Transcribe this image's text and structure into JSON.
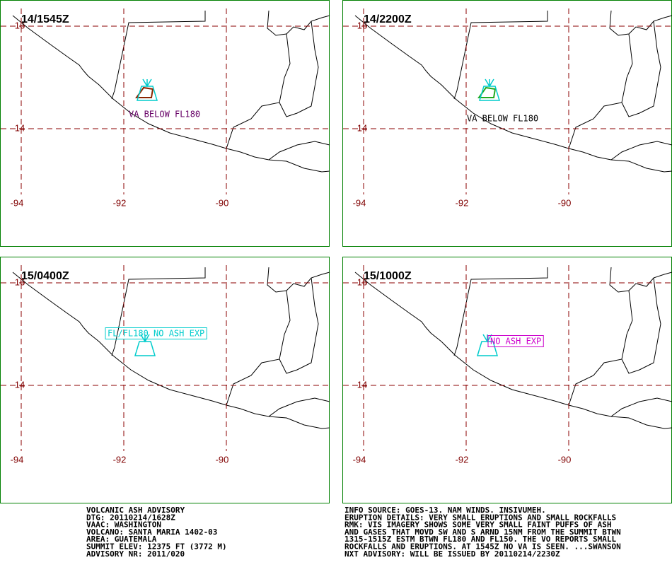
{
  "panels": [
    {
      "title": "14/1545Z",
      "lat_labels": [
        "16",
        "14"
      ],
      "lon_labels": [
        "-94",
        "-92",
        "-90"
      ],
      "annotation": {
        "text": "VA BELOW FL180",
        "color": "#660066",
        "boxed": false,
        "ash": "#8b2500"
      }
    },
    {
      "title": "14/2200Z",
      "lat_labels": [
        "16",
        "14"
      ],
      "lon_labels": [
        "-94",
        "-92",
        "-90"
      ],
      "annotation": {
        "text": "VA BELOW FL180",
        "color": "#000000",
        "boxed": false,
        "ash": "#22aa22"
      }
    },
    {
      "title": "15/0400Z",
      "lat_labels": [
        "16",
        "14"
      ],
      "lon_labels": [
        "-94",
        "-92",
        "-90"
      ],
      "annotation": {
        "text": "FL/FL180 NO ASH EXP",
        "color": "#00cccc",
        "boxed": true,
        "ash": null
      }
    },
    {
      "title": "15/1000Z",
      "lat_labels": [
        "16",
        "14"
      ],
      "lon_labels": [
        "-94",
        "-92",
        "-90"
      ],
      "annotation": {
        "text": "NO ASH EXP",
        "color": "#cc00cc",
        "boxed": true,
        "ash": null
      }
    }
  ],
  "advisory_left": [
    "VOLCANIC ASH ADVISORY",
    "DTG: 20110214/1628Z",
    "VAAC: WASHINGTON",
    "VOLCANO: SANTA MARIA 1402-03",
    "AREA: GUATEMALA",
    "SUMMIT ELEV: 12375 FT (3772 M)",
    "ADVISORY NR: 2011/020"
  ],
  "advisory_right": [
    "INFO SOURCE: GOES-13. NAM WINDS. INSIVUMEH.",
    "ERUPTION DETAILS: VERY SMALL ERUPTIONS AND SMALL ROCKFALLS",
    "RMK: VIS IMAGERY SHOWS SOME VERY SMALL FAINT PUFFS OF ASH",
    "AND GASES THAT MOVD SW AND S ARND 15NM FROM THE SUMMIT BTWN",
    "1315-1515Z ESTM BTWN FL180 AND FL150. THE VO REPORTS SMALL",
    "ROCKFALLS AND ERUPTIONS. AT 1545Z NO VA IS SEEN. ...SWANSON",
    "NXT ADVISORY: WILL BE ISSUED BY 20110214/2230Z"
  ]
}
